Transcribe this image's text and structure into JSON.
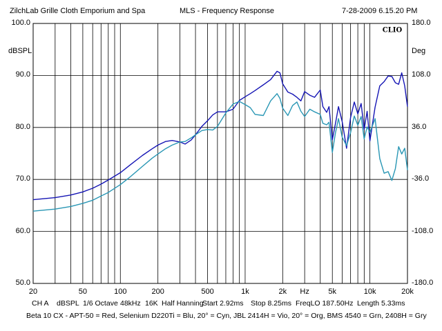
{
  "header": {
    "left": "ZilchLab Grille Cloth Emporium and Spa",
    "center": "MLS - Frequency Response",
    "right": "7-28-2009 6.15.20 PM"
  },
  "logo": "CLIO",
  "colors": {
    "dark_blue": "#1414b4",
    "cyan": "#2896b4",
    "grid": "#000000"
  },
  "chart_data": {
    "type": "line",
    "title": "MLS - Frequency Response",
    "xscale": "log",
    "xlim": [
      20,
      20000
    ],
    "ylim": [
      50,
      100
    ],
    "y2lim": [
      -180,
      180
    ],
    "ylabel": "dBSPL",
    "y2label": "Deg",
    "x_tick_labels": [
      "20",
      "50",
      "100",
      "200",
      "500",
      "1k",
      "2k",
      "Hz",
      "5k",
      "10k",
      "20k"
    ],
    "y_tick_labels": [
      "100.0",
      "90.0",
      "80.0",
      "70.0",
      "60.0",
      "50.0"
    ],
    "y2_tick_labels": [
      "180.0",
      "108.0",
      "36.0",
      "-36.0",
      "-108.0",
      "-180.0"
    ],
    "grid": true,
    "series": [
      {
        "color": "#1414b4",
        "x": [
          20,
          30,
          40,
          50,
          60,
          70,
          80,
          100,
          120,
          150,
          180,
          200,
          230,
          260,
          300,
          330,
          370,
          400,
          450,
          500,
          550,
          600,
          700,
          800,
          900,
          1000,
          1100,
          1200,
          1400,
          1600,
          1800,
          1900,
          2000,
          2200,
          2400,
          2600,
          2800,
          3000,
          3300,
          3600,
          4000,
          4200,
          4500,
          4700,
          5000,
          5300,
          5600,
          6000,
          6500,
          7000,
          7500,
          8000,
          8500,
          9000,
          9500,
          10000,
          11000,
          12000,
          13000,
          14000,
          15000,
          16000,
          17000,
          18000,
          19000,
          20000
        ],
        "y": [
          66.1,
          66.5,
          67.0,
          67.6,
          68.3,
          69.1,
          69.9,
          71.3,
          72.8,
          74.6,
          75.9,
          76.6,
          77.3,
          77.5,
          77.2,
          76.8,
          77.6,
          78.6,
          80.2,
          81.3,
          82.4,
          83.0,
          83.0,
          83.5,
          85.2,
          85.9,
          86.5,
          87.1,
          88.2,
          89.2,
          90.8,
          90.5,
          88.4,
          86.8,
          86.4,
          85.8,
          85.1,
          86.9,
          86.2,
          85.8,
          87.2,
          84.0,
          82.9,
          84.0,
          77.6,
          80.8,
          84.0,
          81.1,
          76.0,
          81.9,
          84.9,
          82.6,
          84.6,
          79.6,
          83.1,
          77.4,
          83.9,
          88.0,
          88.8,
          89.9,
          89.8,
          88.6,
          88.3,
          90.5,
          88.0,
          84.0
        ]
      },
      {
        "color": "#2896b4",
        "x": [
          20,
          30,
          40,
          50,
          60,
          70,
          80,
          100,
          120,
          150,
          180,
          200,
          230,
          260,
          300,
          330,
          370,
          400,
          450,
          500,
          550,
          600,
          700,
          800,
          900,
          1000,
          1100,
          1200,
          1400,
          1600,
          1800,
          1900,
          2000,
          2200,
          2400,
          2600,
          2800,
          3000,
          3300,
          3600,
          4000,
          4200,
          4500,
          4700,
          5000,
          5300,
          5600,
          6000,
          6500,
          7000,
          7500,
          8000,
          8500,
          9000,
          9500,
          10000,
          11000,
          12000,
          13000,
          14000,
          15000,
          16000,
          17000,
          18000,
          19000,
          20000
        ],
        "y": [
          63.9,
          64.3,
          64.8,
          65.4,
          66.0,
          66.8,
          67.5,
          69.0,
          70.5,
          72.5,
          74.1,
          74.9,
          75.9,
          76.6,
          77.2,
          77.3,
          78.0,
          78.6,
          79.4,
          79.6,
          79.5,
          80.2,
          82.8,
          84.5,
          85.0,
          84.4,
          83.8,
          82.5,
          82.3,
          85.1,
          86.5,
          85.6,
          83.7,
          82.3,
          84.2,
          84.9,
          83.1,
          82.1,
          83.5,
          83.0,
          82.5,
          80.8,
          80.5,
          81.0,
          75.2,
          79.0,
          81.7,
          78.1,
          76.5,
          79.0,
          82.2,
          80.4,
          82.1,
          77.8,
          80.1,
          79.0,
          81.7,
          74.0,
          71.2,
          71.5,
          69.8,
          72.1,
          76.3,
          74.9,
          76.0,
          71.8
        ]
      }
    ]
  },
  "footer": {
    "line1": [
      "CH A",
      "dBSPL",
      "1/6 Octave",
      "48kHz",
      "16K",
      "Half Hanning",
      "Start 2.92ms",
      "Stop 8.25ms",
      "FreqLO 187.50Hz",
      "Length 5.33ms"
    ],
    "line2": "Beta 10 CX - APT-50 = Red, Selenium D220Ti = Blu, 20° = Cyn, JBL 2414H = Vio, 20° = Org, BMS 4540 = Grn, 2408H = Gry"
  }
}
